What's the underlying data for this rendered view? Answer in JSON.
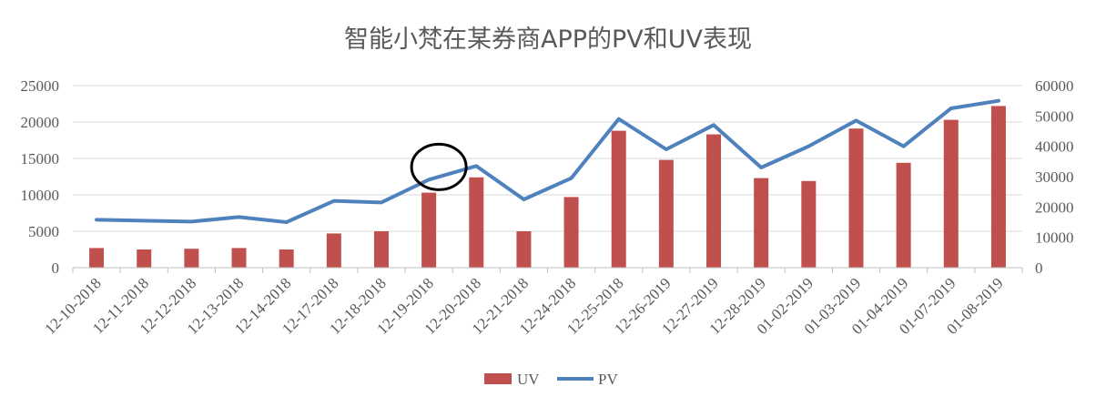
{
  "chart_data": {
    "type": "bar",
    "title": "智能小梵在某券商APP的PV和UV表现",
    "categories": [
      "12-10-2018",
      "12-11-2018",
      "12-12-2018",
      "12-13-2018",
      "12-14-2018",
      "12-17-2018",
      "12-18-2018",
      "12-19-2018",
      "12-20-2018",
      "12-21-2018",
      "12-24-2018",
      "12-25-2018",
      "12-26-2019",
      "12-27-2019",
      "12-28-2019",
      "01-02-2019",
      "01-03-2019",
      "01-04-2019",
      "01-07-2019",
      "01-08-2019"
    ],
    "series": [
      {
        "name": "UV",
        "type": "bar",
        "axis": "left",
        "color": "#c0504d",
        "values": [
          2700,
          2500,
          2600,
          2700,
          2500,
          4700,
          5000,
          10300,
          12400,
          5000,
          9700,
          18800,
          14800,
          18300,
          12300,
          11900,
          19100,
          14400,
          20300,
          22200
        ]
      },
      {
        "name": "PV",
        "type": "line",
        "axis": "right",
        "color": "#4f81bd",
        "values": [
          15800,
          15500,
          15200,
          16700,
          15000,
          22000,
          21500,
          29000,
          33500,
          22500,
          29500,
          49000,
          39000,
          47000,
          33000,
          40000,
          48500,
          40000,
          52500,
          55000
        ]
      }
    ],
    "ylim_left": [
      0,
      25000
    ],
    "yticks_left": [
      "0",
      "5000",
      "10000",
      "15000",
      "20000",
      "25000"
    ],
    "ylim_right": [
      0,
      60000
    ],
    "yticks_right": [
      "0",
      "10000",
      "20000",
      "30000",
      "40000",
      "50000",
      "60000"
    ],
    "grid": true,
    "legend_position": "bottom",
    "annotation": {
      "shape": "ellipse",
      "at_category": "12-19-2018",
      "color": "#000000"
    }
  }
}
